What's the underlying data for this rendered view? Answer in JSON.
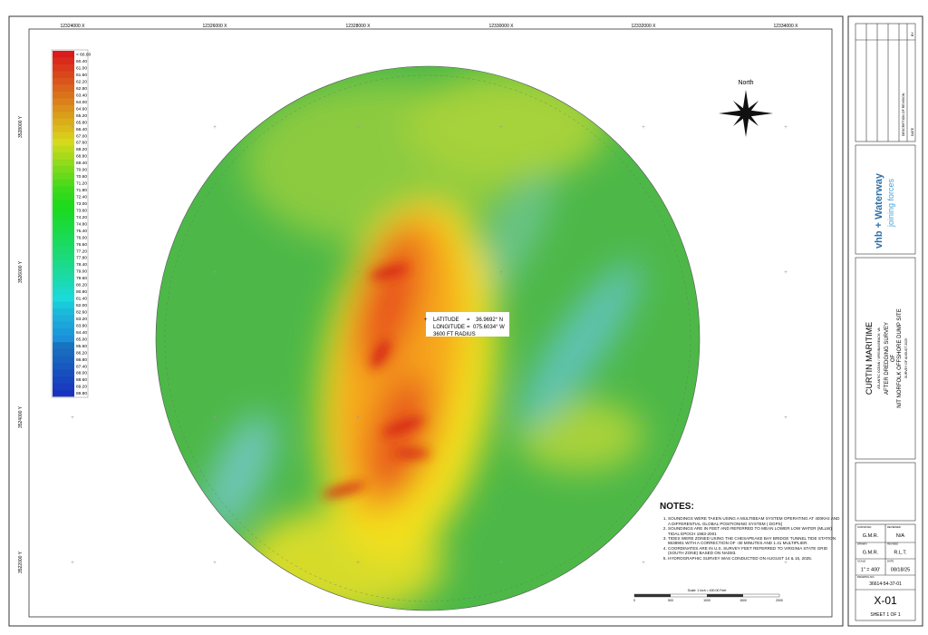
{
  "grid_labels": {
    "x": [
      "12324000 X",
      "12326000 X",
      "12328000 X",
      "12330000 X",
      "12332000 X",
      "12334000 X"
    ],
    "y": [
      "3528000 Y",
      "3526000 Y",
      "3524000 Y",
      "3522000 Y"
    ]
  },
  "legend": {
    "labels": [
      "< 60.00",
      "60.40",
      "61.00",
      "61.60",
      "62.20",
      "62.80",
      "63.40",
      "64.00",
      "64.60",
      "65.20",
      "65.80",
      "66.40",
      "67.00",
      "67.60",
      "68.20",
      "68.80",
      "69.40",
      "70.00",
      "70.60",
      "71.20",
      "71.80",
      "72.40",
      "73.00",
      "73.60",
      "74.20",
      "74.80",
      "75.40",
      "76.00",
      "76.60",
      "77.20",
      "77.80",
      "78.40",
      "79.00",
      "79.60",
      "80.20",
      "80.80",
      "81.40",
      "82.00",
      "82.60",
      "83.20",
      "83.80",
      "84.40",
      "85.00",
      "85.60",
      "86.20",
      "86.80",
      "87.40",
      "88.00",
      "88.60",
      "89.20",
      "89.80"
    ]
  },
  "site": {
    "latitude_label": "LATITUDE",
    "latitude": "36.9692° N",
    "longitude_label": "LONGITUDE",
    "longitude": "075.6034° W",
    "radius": "3600 FT RADIUS"
  },
  "north": "North",
  "notes": {
    "title": "NOTES:",
    "items": [
      "SOUNDINGS WERE TAKEN USING A MULTIBEAM SYSTEM OPERATING AT 400KHz AND A DIFFERENTIAL GLOBAL POSITIONING SYSTEM ( DGPS)",
      "SOUNDINGS ARE IN FEET AND REFERRED TO MEAN LOWER LOW WATER (MLLW) TIDAL EPOCH 1983-2001",
      "TIDES WERE ZONED USING THE CHESAPEAKE BAY BRIDGE TUNNEL TIDE STATION 8638901 WITH A CORRECTION OF -30 MINUTES AND 1.41 MULTIPLIER.",
      "COORDINATES ARE IN U.S. SURVEY FEET REFERRED TO VIRGINIA STATE GRID (SOUTH ZONE) BASED ON NAD83.",
      "HYDROGRAPHIC SURVEY WAS CONDUCTED ON AUGUST 14 & 15, 2025."
    ]
  },
  "scale_bar": {
    "title": "Scale: 1 inch = 400.00 Feet",
    "ticks": [
      "0",
      "500",
      "1000",
      "1500",
      "2000"
    ]
  },
  "title_block": {
    "revision_headers": [
      "DATE",
      "DESCRIPTION OF REVISION",
      "BY",
      "APP"
    ],
    "logo": "vhb + Waterway",
    "logo_tagline": "joining forces",
    "client": "CURTIN MARITIME",
    "location": "ATLANTIC OCEAN / VIRGINIA BEACH, VA",
    "survey_title": "AFTER DREDGING SURVEY",
    "of": "OF",
    "site_name": "NIT NORFOLK OFFSHORE DUMP SITE",
    "survey_date": "SURVEY OF AUGUST 2025",
    "fields": [
      {
        "label": "SURVEYED",
        "value": "G.M.R."
      },
      {
        "label": "REVIEWED",
        "value": "N/A"
      },
      {
        "label": "DRAWN",
        "value": "G.M.R."
      },
      {
        "label": "REVISED",
        "value": "R.L.T."
      },
      {
        "label": "SCALE",
        "value": "1\" = 400'"
      },
      {
        "label": "DATE",
        "value": "08/18/25"
      }
    ],
    "drawing_no_label": "DRAWING NO.",
    "drawing_no": "36614-54-37-01",
    "sheet_id": "X-01",
    "sheet": "SHEET 1 OF 1"
  }
}
